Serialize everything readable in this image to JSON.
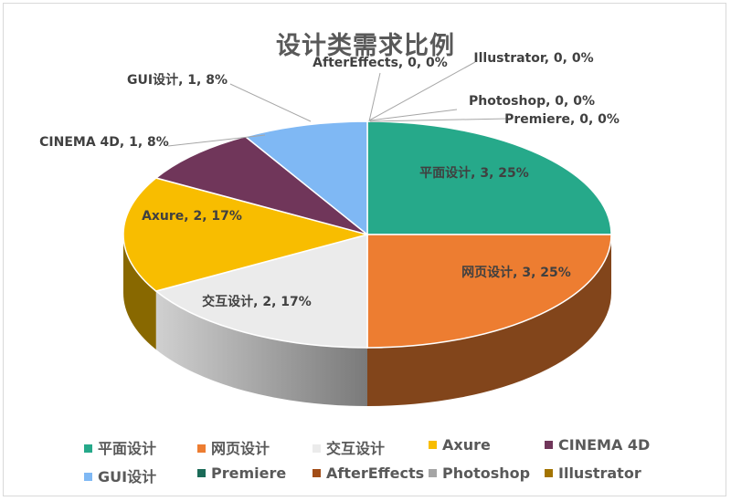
{
  "chart_data": {
    "type": "pie",
    "title": "设计类需求比例",
    "categories": [
      "平面设计",
      "网页设计",
      "交互设计",
      "Axure",
      "CINEMA 4D",
      "GUI设计",
      "Premiere",
      "AfterEffects",
      "Photoshop",
      "Illustrator"
    ],
    "values": [
      3,
      3,
      2,
      2,
      1,
      1,
      0,
      0,
      0,
      0
    ],
    "percents": [
      "25%",
      "25%",
      "17%",
      "17%",
      "8%",
      "8%",
      "0%",
      "0%",
      "0%",
      "0%"
    ],
    "data_labels": [
      "平面设计, 3, 25%",
      "网页设计, 3, 25%",
      "交互设计, 2, 17%",
      "Axure, 2, 17%",
      "CINEMA 4D, 1, 8%",
      "GUI设计, 1, 8%",
      "Premiere, 0, 0%",
      "AfterEffects, 0, 0%",
      "Photoshop, 0, 0%",
      "Illustrator, 0, 0%"
    ],
    "colors": [
      "#26a98a",
      "#ed7d31",
      "#ebebeb",
      "#f8bd00",
      "#70365a",
      "#7fb8f4",
      "#1b6b58",
      "#a24d17",
      "#a5a5a5",
      "#a37400"
    ],
    "style": "3d-pie",
    "legend_position": "bottom"
  }
}
